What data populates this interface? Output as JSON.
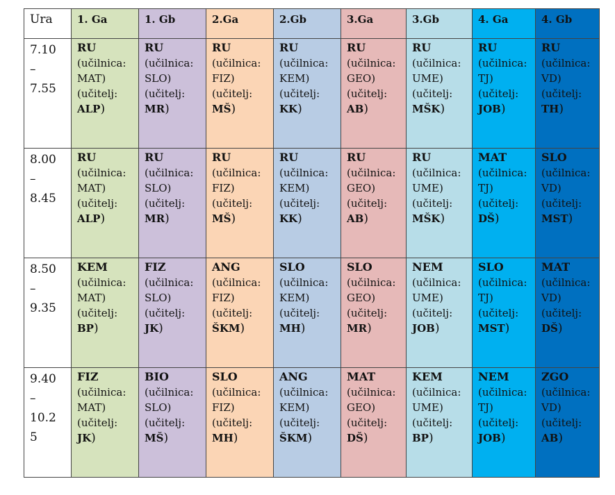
{
  "header": [
    "Ura",
    "1. Ga",
    "1. Gb",
    "2.Ga",
    "2.Gb",
    "3.Ga",
    "3.Gb",
    "4. Ga",
    "4. Gb"
  ],
  "labels": {
    "room_prefix": "(učilnica",
    "teacher": "(učitelj:"
  },
  "colors": {
    "1. Ga": "#d6e3bd",
    "1. Gb": "#ccc0da",
    "2.Ga": "#fbd5b5",
    "2.Gb": "#b8cce4",
    "3.Ga": "#e6b9b8",
    "3.Gb": "#b7dde8",
    "4. Ga": "#00b0f0",
    "4. Gb": "#0070c0"
  },
  "rows": [
    {
      "time": [
        "7.10",
        "–",
        "7.55"
      ],
      "cells": [
        {
          "subject": "RU",
          "room": "MAT",
          "teacher": "ALP"
        },
        {
          "subject": "RU",
          "room": "SLO",
          "teacher": "MR"
        },
        {
          "subject": "RU",
          "room": "FIZ",
          "teacher": "MŠ"
        },
        {
          "subject": "RU",
          "room": "KEM",
          "teacher": "KK"
        },
        {
          "subject": "RU",
          "room": "GEO",
          "teacher": "AB"
        },
        {
          "subject": "RU",
          "room": "UME",
          "teacher": "MŠK"
        },
        {
          "subject": "RU",
          "room": "TJ",
          "teacher": "JOB"
        },
        {
          "subject": "RU",
          "room": "VD",
          "teacher": "TH"
        }
      ]
    },
    {
      "time": [
        "8.00",
        "–",
        "8.45"
      ],
      "cells": [
        {
          "subject": "RU",
          "room": "MAT",
          "teacher": "ALP"
        },
        {
          "subject": "RU",
          "room": "SLO",
          "teacher": "MR"
        },
        {
          "subject": "RU",
          "room": "FIZ",
          "teacher": "MŠ"
        },
        {
          "subject": "RU",
          "room": "KEM",
          "teacher": "KK"
        },
        {
          "subject": "RU",
          "room": "GEO",
          "teacher": "AB"
        },
        {
          "subject": "RU",
          "room": "UME",
          "teacher": "MŠK"
        },
        {
          "subject": "MAT",
          "room": "TJ",
          "teacher": "DŠ"
        },
        {
          "subject": "SLO",
          "room": "VD",
          "teacher": "MST"
        }
      ]
    },
    {
      "time": [
        "8.50",
        "–",
        "9.35"
      ],
      "cells": [
        {
          "subject": "KEM",
          "room": "MAT",
          "teacher": "BP"
        },
        {
          "subject": "FIZ",
          "room": "SLO",
          "teacher": "JK"
        },
        {
          "subject": "ANG",
          "room": "FIZ",
          "teacher": "ŠKM"
        },
        {
          "subject": "SLO",
          "room": "KEM",
          "teacher": "MH"
        },
        {
          "subject": "SLO",
          "room": "GEO",
          "teacher": "MR"
        },
        {
          "subject": "NEM",
          "room": "UME",
          "teacher": "JOB"
        },
        {
          "subject": "SLO",
          "room": "TJ",
          "teacher": "MST"
        },
        {
          "subject": "MAT",
          "room": "VD",
          "teacher": "DŠ"
        }
      ]
    },
    {
      "time": [
        "9.40",
        "–",
        "10.2",
        "5"
      ],
      "cells": [
        {
          "subject": "FIZ",
          "room": "MAT",
          "teacher": "JK"
        },
        {
          "subject": "BIO",
          "room": "SLO",
          "teacher": "MŠ"
        },
        {
          "subject": "SLO",
          "room": "FIZ",
          "teacher": "MH"
        },
        {
          "subject": "ANG",
          "room": "KEM",
          "teacher": "ŠKM"
        },
        {
          "subject": "MAT",
          "room": "GEO",
          "teacher": "DŠ"
        },
        {
          "subject": "KEM",
          "room": "UME",
          "teacher": "BP"
        },
        {
          "subject": "NEM",
          "room": "TJ",
          "teacher": "JOB"
        },
        {
          "subject": "ZGO",
          "room": "VD",
          "teacher": "AB"
        }
      ]
    }
  ]
}
